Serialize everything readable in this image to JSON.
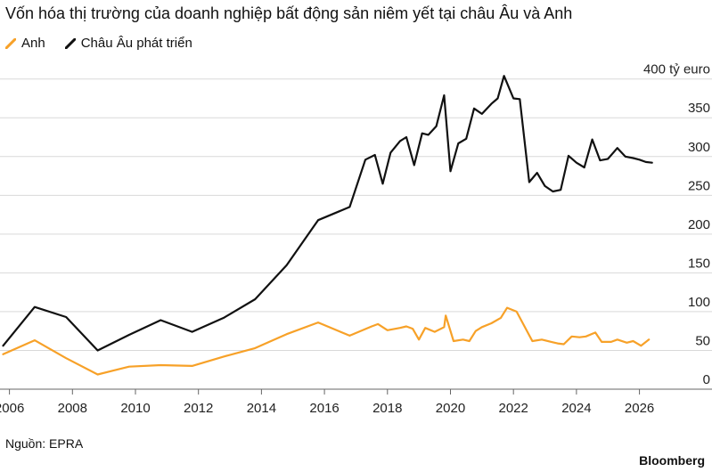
{
  "title": "Vốn hóa thị trường của doanh nghiệp bất động sản niêm yết tại châu Âu và Anh",
  "source": "Nguồn: EPRA",
  "brand": "Bloomberg",
  "colors": {
    "anh": "#f7a128",
    "europe": "#111111",
    "grid": "#d9d9d9"
  },
  "legend": [
    {
      "label": "Anh",
      "color": "#f7a128"
    },
    {
      "label": "Châu Âu phát triển",
      "color": "#111111"
    }
  ],
  "chart_data": {
    "type": "line",
    "title": "Vốn hóa thị trường của doanh nghiệp bất động sản niêm yết tại châu Âu và Anh",
    "ylabel": "tỷ euro",
    "y_tick_labels": [
      "400 tỷ euro",
      "350",
      "300",
      "250",
      "200",
      "150",
      "100",
      "50",
      "0"
    ],
    "y_ticks": [
      400,
      350,
      300,
      250,
      200,
      150,
      100,
      50,
      0
    ],
    "x_tick_labels": [
      "2006",
      "2008",
      "2010",
      "2012",
      "2014",
      "2016",
      "2018",
      "2020",
      "2022",
      "2024",
      "2026"
    ],
    "x_ticks": [
      2006,
      2008,
      2010,
      2012,
      2014,
      2016,
      2018,
      2020,
      2022,
      2024,
      2026
    ],
    "xlim": [
      2005.7,
      2027.2
    ],
    "ylim": [
      0,
      410
    ],
    "grid": true,
    "legend_position": "top-left",
    "series": [
      {
        "name": "Anh",
        "color": "#f7a128",
        "points": [
          [
            2005.8,
            45
          ],
          [
            2006.8,
            63
          ],
          [
            2007.8,
            40
          ],
          [
            2008.8,
            19
          ],
          [
            2009.8,
            29
          ],
          [
            2010.8,
            31
          ],
          [
            2011.8,
            30
          ],
          [
            2012.8,
            42
          ],
          [
            2013.8,
            53
          ],
          [
            2014.8,
            71
          ],
          [
            2015.8,
            86
          ],
          [
            2016.8,
            69
          ],
          [
            2017.5,
            81
          ],
          [
            2017.7,
            84
          ],
          [
            2018.0,
            76
          ],
          [
            2018.4,
            79
          ],
          [
            2018.6,
            81
          ],
          [
            2018.8,
            78
          ],
          [
            2019.0,
            64
          ],
          [
            2019.2,
            79
          ],
          [
            2019.5,
            74
          ],
          [
            2019.8,
            80
          ],
          [
            2019.85,
            95
          ],
          [
            2020.1,
            62
          ],
          [
            2020.4,
            64
          ],
          [
            2020.6,
            62
          ],
          [
            2020.8,
            75
          ],
          [
            2021.0,
            80
          ],
          [
            2021.3,
            85
          ],
          [
            2021.6,
            92
          ],
          [
            2021.8,
            105
          ],
          [
            2022.1,
            100
          ],
          [
            2022.6,
            62
          ],
          [
            2022.9,
            64
          ],
          [
            2023.2,
            61
          ],
          [
            2023.4,
            59
          ],
          [
            2023.6,
            58
          ],
          [
            2023.85,
            68
          ],
          [
            2024.1,
            67
          ],
          [
            2024.3,
            68
          ],
          [
            2024.6,
            73
          ],
          [
            2024.8,
            61
          ],
          [
            2025.1,
            61
          ],
          [
            2025.3,
            64
          ],
          [
            2025.6,
            60
          ],
          [
            2025.8,
            62
          ],
          [
            2026.05,
            56
          ],
          [
            2026.3,
            64
          ]
        ]
      },
      {
        "name": "Châu Âu phát triển",
        "color": "#111111",
        "points": [
          [
            2005.8,
            56
          ],
          [
            2006.8,
            106
          ],
          [
            2007.8,
            93
          ],
          [
            2008.8,
            50
          ],
          [
            2009.8,
            70
          ],
          [
            2010.8,
            89
          ],
          [
            2011.8,
            74
          ],
          [
            2012.8,
            92
          ],
          [
            2013.8,
            116
          ],
          [
            2014.8,
            160
          ],
          [
            2015.8,
            218
          ],
          [
            2016.8,
            235
          ],
          [
            2017.3,
            296
          ],
          [
            2017.6,
            302
          ],
          [
            2017.85,
            265
          ],
          [
            2018.1,
            305
          ],
          [
            2018.4,
            320
          ],
          [
            2018.6,
            325
          ],
          [
            2018.85,
            289
          ],
          [
            2019.1,
            330
          ],
          [
            2019.3,
            328
          ],
          [
            2019.55,
            339
          ],
          [
            2019.8,
            379
          ],
          [
            2020.0,
            281
          ],
          [
            2020.25,
            317
          ],
          [
            2020.5,
            323
          ],
          [
            2020.75,
            362
          ],
          [
            2021.0,
            355
          ],
          [
            2021.3,
            368
          ],
          [
            2021.5,
            375
          ],
          [
            2021.7,
            404
          ],
          [
            2022.0,
            375
          ],
          [
            2022.2,
            374
          ],
          [
            2022.5,
            267
          ],
          [
            2022.75,
            279
          ],
          [
            2023.0,
            262
          ],
          [
            2023.25,
            255
          ],
          [
            2023.5,
            257
          ],
          [
            2023.75,
            301
          ],
          [
            2024.0,
            292
          ],
          [
            2024.25,
            286
          ],
          [
            2024.5,
            322
          ],
          [
            2024.75,
            295
          ],
          [
            2025.0,
            297
          ],
          [
            2025.3,
            311
          ],
          [
            2025.55,
            300
          ],
          [
            2025.8,
            298
          ],
          [
            2026.0,
            296
          ],
          [
            2026.2,
            293
          ],
          [
            2026.4,
            292
          ]
        ]
      }
    ]
  }
}
